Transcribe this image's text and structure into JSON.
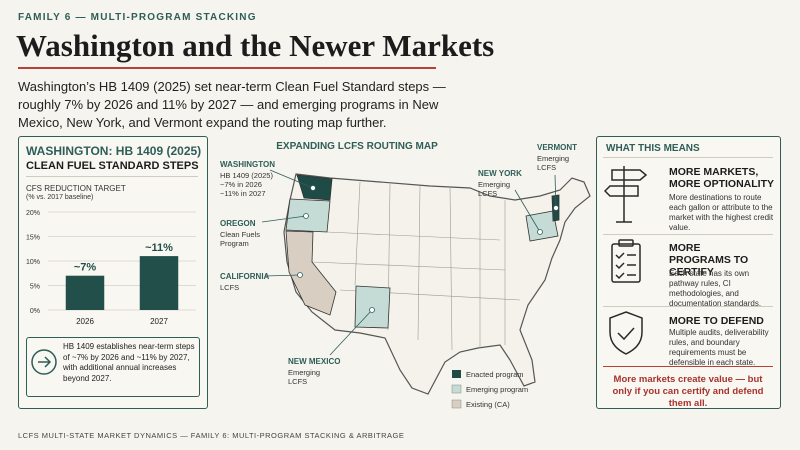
{
  "header": {
    "eyebrow": "FAMILY 6 — MULTI-PROGRAM STACKING",
    "title": "Washington and the Newer Markets"
  },
  "intro": "Washington’s HB 1409 (2025) set near-term Clean Fuel Standard steps — roughly 7% by 2026 and 11% by 2027 — and emerging programs in New Mexico, New York, and Vermont expand the routing map further.",
  "washington_panel": {
    "title": "WASHINGTON: HB 1409 (2025)",
    "subtitle": "CLEAN FUEL STANDARD STEPS",
    "chart": {
      "type": "bar",
      "y_label": "CFS REDUCTION TARGET",
      "y_sublabel": "(% vs. 2017 baseline)",
      "categories": [
        "2026",
        "2027"
      ],
      "values": [
        7,
        11
      ],
      "value_labels": [
        "~7%",
        "~11%"
      ],
      "color": "#234f4a",
      "ylim": [
        0,
        20
      ],
      "yticks": [
        {
          "value": 0,
          "label": "0%"
        },
        {
          "value": 5,
          "label": "5%"
        },
        {
          "value": 10,
          "label": "10%"
        },
        {
          "value": 15,
          "label": "15%"
        },
        {
          "value": 20,
          "label": "20%"
        }
      ],
      "grid": true
    },
    "note": "HB 1409 establishes near-term steps of ~7% by 2026 and ~11% by 2027, with additional annual increases beyond 2027."
  },
  "map": {
    "title": "EXPANDING LCFS ROUTING MAP",
    "callouts": [
      {
        "name": "WASHINGTON",
        "detail": [
          "HB 1409 (2025)",
          "~7% in 2026",
          "~11% in 2027"
        ]
      },
      {
        "name": "OREGON",
        "detail": [
          "Clean Fuels",
          "Program"
        ]
      },
      {
        "name": "CALIFORNIA",
        "detail": [
          "LCFS"
        ]
      },
      {
        "name": "NEW MEXICO",
        "detail": [
          "Emerging",
          "LCFS"
        ]
      },
      {
        "name": "NEW YORK",
        "detail": [
          "Emerging",
          "LCFS"
        ]
      },
      {
        "name": "VERMONT",
        "detail": [
          "Emerging",
          "LCFS"
        ]
      }
    ],
    "legend": [
      "Enacted program",
      "Emerging program",
      "Existing (CA)"
    ]
  },
  "implications": {
    "title": "WHAT THIS MEANS",
    "items": [
      {
        "title": "MORE MARKETS, MORE OPTIONALITY",
        "text": "More destinations to route each gallon or attribute to the market with the highest credit value."
      },
      {
        "title": "MORE PROGRAMS TO CERTIFY",
        "text": "Each state has its own pathway rules, CI methodologies, and documentation standards."
      },
      {
        "title": "MORE TO DEFEND",
        "text": "Multiple audits, deliverability rules, and boundary requirements must be defensible in each state."
      }
    ],
    "conclusion": "More markets create value — but only if you can certify and defend them all."
  },
  "footer": "LCFS MULTI-STATE MARKET DYNAMICS — FAMILY 6: MULTI-PROGRAM STACKING & ARBITRAGE"
}
